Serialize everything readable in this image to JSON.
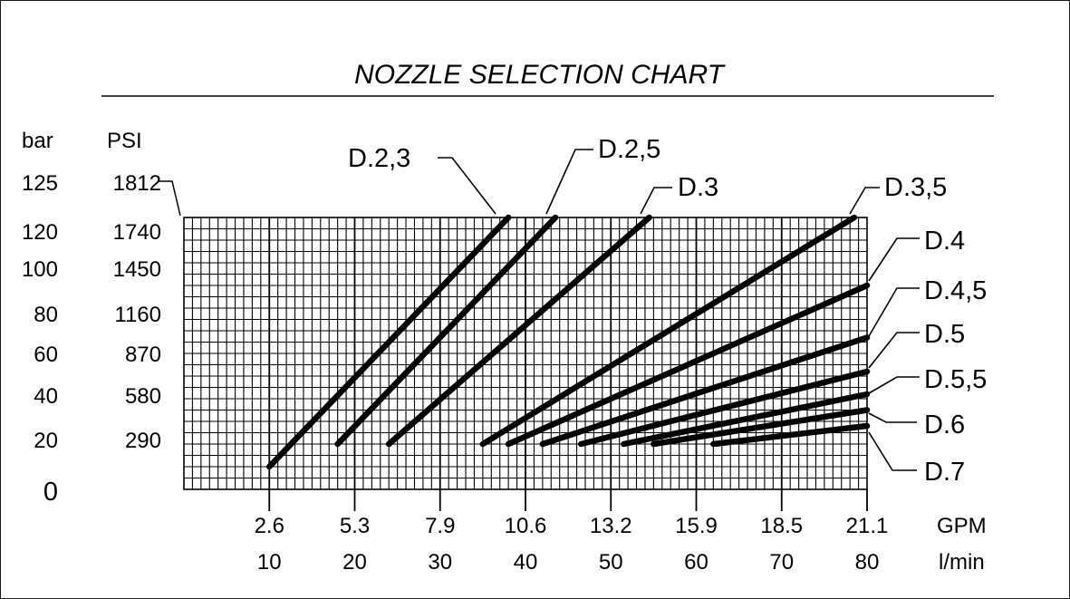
{
  "chart_data": {
    "type": "line",
    "title": "NOZZLE SELECTION CHART",
    "x_axis": {
      "units": [
        "GPM",
        "l/min"
      ],
      "gpm_ticks": [
        "2.6",
        "5.3",
        "7.9",
        "10.6",
        "13.2",
        "15.9",
        "18.5",
        "21.1"
      ],
      "lmin_ticks": [
        "10",
        "20",
        "30",
        "40",
        "50",
        "60",
        "70",
        "80"
      ],
      "xlim_lmin": [
        0,
        80
      ]
    },
    "y_axis": {
      "units": [
        "bar",
        "PSI"
      ],
      "bar_ticks": [
        "125",
        "120",
        "100",
        "80",
        "60",
        "40",
        "20",
        "0"
      ],
      "psi_ticks": [
        "1812",
        "1740",
        "1450",
        "1160",
        "870",
        "580",
        "290"
      ],
      "ylim_bar": [
        0,
        125
      ],
      "grid_top_bar": 120
    },
    "grid": true,
    "series": [
      {
        "name": "D.2,3",
        "x": [
          10,
          38
        ],
        "y": [
          10,
          120
        ]
      },
      {
        "name": "D.2,5",
        "x": [
          18,
          43.5
        ],
        "y": [
          20,
          120
        ]
      },
      {
        "name": "D.3",
        "x": [
          24,
          54.5
        ],
        "y": [
          20,
          120
        ]
      },
      {
        "name": "D.3,5",
        "x": [
          35,
          78.5
        ],
        "y": [
          20,
          120
        ]
      },
      {
        "name": "D.4",
        "x": [
          38,
          80
        ],
        "y": [
          20,
          90
        ]
      },
      {
        "name": "D.4,5",
        "x": [
          42,
          80
        ],
        "y": [
          20,
          67
        ]
      },
      {
        "name": "D.5",
        "x": [
          46.5,
          80
        ],
        "y": [
          20,
          52
        ]
      },
      {
        "name": "D.5,5",
        "x": [
          51.5,
          80
        ],
        "y": [
          20,
          42
        ]
      },
      {
        "name": "D.6",
        "x": [
          55,
          80
        ],
        "y": [
          20,
          35
        ]
      },
      {
        "name": "D.7",
        "x": [
          62,
          80
        ],
        "y": [
          20,
          28
        ]
      }
    ]
  }
}
